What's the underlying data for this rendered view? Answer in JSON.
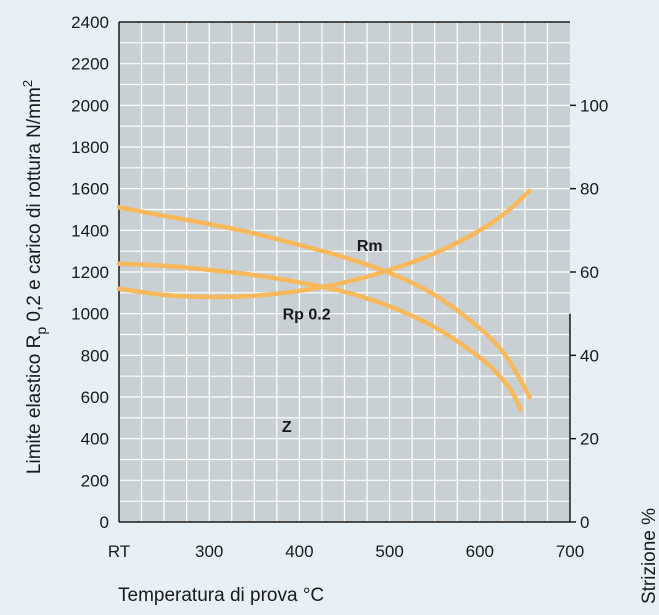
{
  "colors": {
    "background": "#e6f0f5",
    "plot_area": "#c8d0d4",
    "grid": "#ffffff",
    "axis": "#1a1a1a",
    "curve": "#f7b95b"
  },
  "chart_data": {
    "type": "line",
    "title": "",
    "xlabel": "Temperatura di prova °C",
    "ylabel_prefix": "Limite elastico R",
    "ylabel_subscript": "p",
    "ylabel_suffix": " 0,2 e carico di rottura N/mm",
    "ylabel_superscript": "2",
    "y2label": "Strizione %",
    "xlim": [
      200,
      700
    ],
    "ylim": [
      0,
      2400
    ],
    "y2lim": [
      0,
      120
    ],
    "x_ticks": [
      {
        "value": 200,
        "label": "RT"
      },
      {
        "value": 300,
        "label": "300"
      },
      {
        "value": 400,
        "label": "400"
      },
      {
        "value": 500,
        "label": "500"
      },
      {
        "value": 600,
        "label": "600"
      },
      {
        "value": 700,
        "label": "700"
      }
    ],
    "y_ticks": [
      0,
      200,
      400,
      600,
      800,
      1000,
      1200,
      1400,
      1600,
      1800,
      2000,
      2200,
      2400
    ],
    "y2_ticks": [
      0,
      20,
      40,
      60,
      80,
      100
    ],
    "x_minor_step": 25,
    "y_minor_step": 100,
    "grid": true,
    "series": [
      {
        "name": "Rm",
        "axis": "left",
        "x": [
          200,
          250,
          300,
          350,
          400,
          450,
          500,
          550,
          600,
          625,
          640,
          655
        ],
        "y": [
          1510,
          1470,
          1430,
          1385,
          1330,
          1270,
          1195,
          1090,
          930,
          820,
          720,
          600
        ]
      },
      {
        "name": "Rp 0.2",
        "axis": "left",
        "x": [
          200,
          250,
          300,
          350,
          400,
          450,
          500,
          550,
          600,
          620,
          635,
          645
        ],
        "y": [
          1240,
          1230,
          1210,
          1185,
          1150,
          1105,
          1035,
          935,
          790,
          710,
          630,
          540
        ]
      },
      {
        "name": "Z",
        "axis": "right",
        "x": [
          200,
          250,
          300,
          350,
          400,
          450,
          500,
          550,
          600,
          630,
          655
        ],
        "y": [
          56,
          54.5,
          54,
          54.3,
          55.5,
          57.5,
          60.5,
          64.5,
          70,
          74.5,
          79.5
        ]
      }
    ],
    "labels": [
      {
        "text": "Rm",
        "series": "Rm",
        "x": 478,
        "y": 1330
      },
      {
        "text": "Rp 0.2",
        "series": "Rp 0.2",
        "x": 408,
        "y": 1000
      },
      {
        "text": "Z",
        "series": "Z",
        "x": 386,
        "y": 460
      }
    ]
  }
}
